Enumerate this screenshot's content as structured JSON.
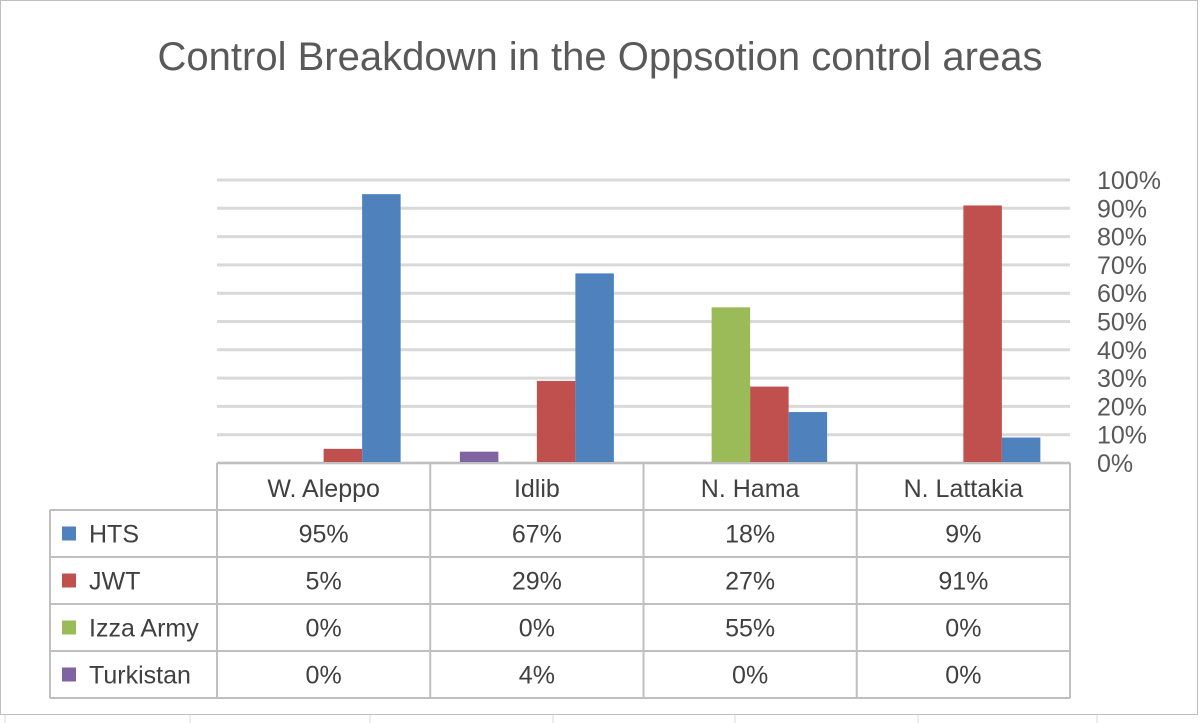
{
  "chart_data": {
    "type": "bar",
    "title": "Control Breakdown in the Oppsotion control areas",
    "categories": [
      "W. Aleppo",
      "Idlib",
      "N. Hama",
      "N. Lattakia"
    ],
    "series": [
      {
        "name": "HTS",
        "color": "#4f81bd",
        "values": [
          95,
          67,
          18,
          9
        ],
        "labels": [
          "95%",
          "67%",
          "18%",
          "9%"
        ]
      },
      {
        "name": "JWT",
        "color": "#c0504d",
        "values": [
          5,
          29,
          27,
          91
        ],
        "labels": [
          "5%",
          "29%",
          "27%",
          "91%"
        ]
      },
      {
        "name": "Izza Army",
        "color": "#9bbb59",
        "values": [
          0,
          0,
          55,
          0
        ],
        "labels": [
          "0%",
          "0%",
          "55%",
          "0%"
        ]
      },
      {
        "name": "Turkistan",
        "color": "#8064a2",
        "values": [
          0,
          4,
          0,
          0
        ],
        "labels": [
          "0%",
          "4%",
          "0%",
          "0%"
        ]
      }
    ],
    "bar_order": [
      "Turkistan",
      "Izza Army",
      "JWT",
      "HTS"
    ],
    "ylim": [
      0,
      100
    ],
    "yticks": [
      "0%",
      "10%",
      "20%",
      "30%",
      "40%",
      "50%",
      "60%",
      "70%",
      "80%",
      "90%",
      "100%"
    ],
    "y_axis_side": "right",
    "grid": true,
    "legend": "data-table"
  }
}
